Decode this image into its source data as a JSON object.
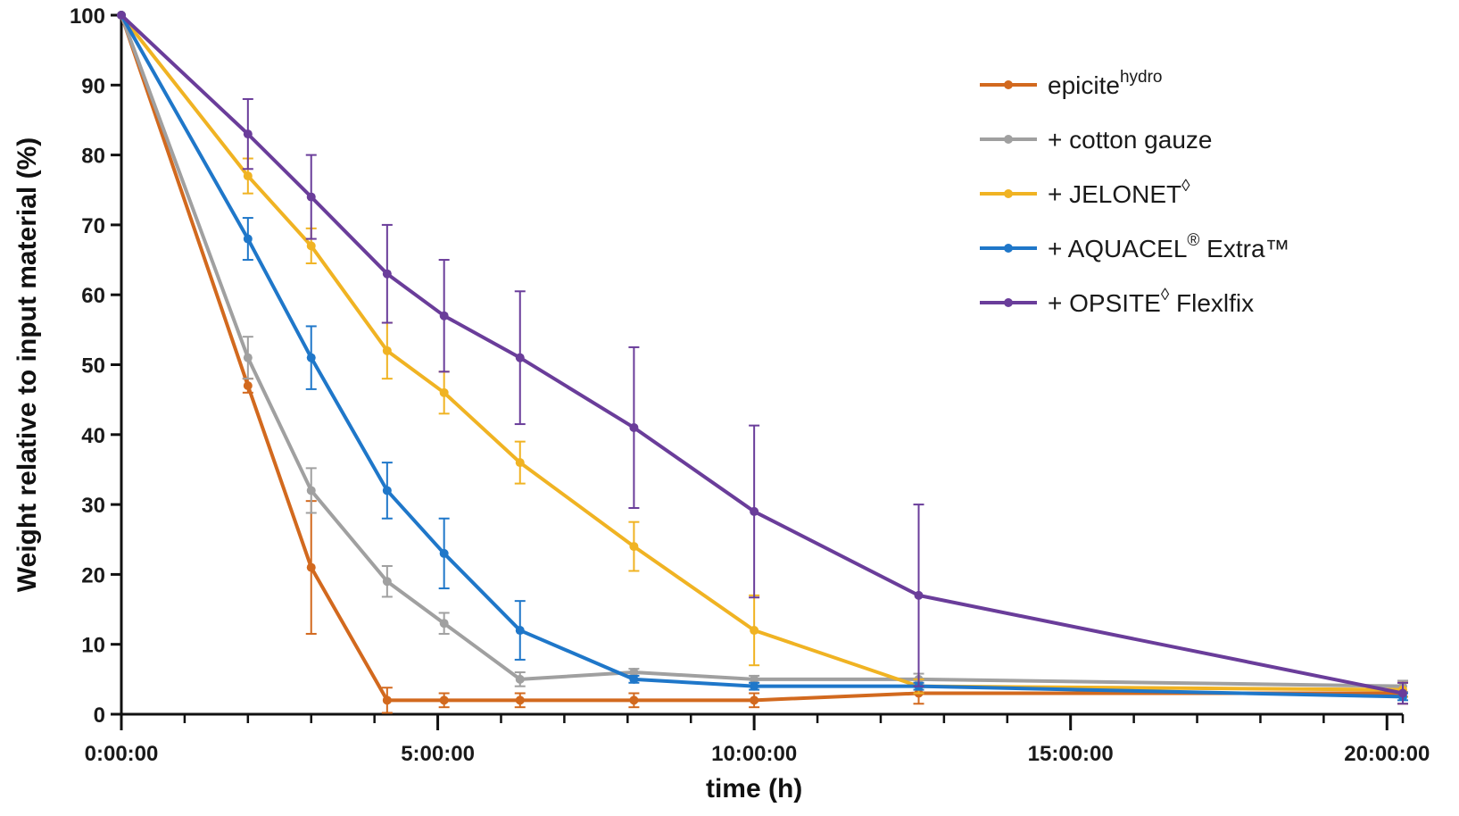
{
  "chart_data": {
    "type": "line",
    "xlabel": "time (h)",
    "ylabel": "Weight relative to input material (%)",
    "xlim": [
      0,
      20.25
    ],
    "ylim": [
      0,
      100
    ],
    "x_ticks": [
      {
        "value": 0,
        "label": "0:00:00"
      },
      {
        "value": 5,
        "label": "5:00:00"
      },
      {
        "value": 10,
        "label": "10:00:00"
      },
      {
        "value": 15,
        "label": "15:00:00"
      },
      {
        "value": 20,
        "label": "20:00:00"
      }
    ],
    "x_minor_step": 1,
    "y_ticks": [
      0,
      10,
      20,
      30,
      40,
      50,
      60,
      70,
      80,
      90,
      100
    ],
    "legend_position": "top-right",
    "series": [
      {
        "name": "epicite",
        "name_sup": "hydro",
        "name_suffix": "",
        "color": "#d2691e",
        "x": [
          0,
          2,
          3,
          4.2,
          5.1,
          6.3,
          8.1,
          10,
          12.6,
          20.25
        ],
        "y": [
          100,
          47,
          21,
          2,
          2,
          2,
          2,
          2,
          3,
          3
        ],
        "err": [
          0,
          1,
          9.5,
          1.8,
          1,
          1,
          1,
          1,
          1.5,
          1.5
        ]
      },
      {
        "name": "+ cotton gauze",
        "name_sup": "",
        "name_suffix": "",
        "color": "#a0a0a0",
        "x": [
          0,
          2,
          3,
          4.2,
          5.1,
          6.3,
          8.1,
          10,
          12.6,
          20.25
        ],
        "y": [
          100,
          51,
          32,
          19,
          13,
          5,
          6,
          5,
          5,
          4
        ],
        "err": [
          0,
          3,
          3.2,
          2.2,
          1.5,
          1,
          0.5,
          0.5,
          0.8,
          0.8
        ]
      },
      {
        "name": "+ JELONET",
        "name_sup": "◊",
        "name_suffix": "",
        "color": "#f0b323",
        "x": [
          0,
          2,
          3,
          4.2,
          5.1,
          6.3,
          8.1,
          10,
          12.6,
          20.25
        ],
        "y": [
          100,
          77,
          67,
          52,
          46,
          36,
          24,
          12,
          4,
          3.5
        ],
        "err": [
          0,
          2.5,
          2.5,
          4,
          3,
          3,
          3.5,
          5,
          1,
          1
        ]
      },
      {
        "name": "+ AQUACEL",
        "name_sup": "®",
        "name_suffix": " Extra™",
        "color": "#1f77c9",
        "x": [
          0,
          2,
          3,
          4.2,
          5.1,
          6.3,
          8.1,
          10,
          12.6,
          20.25
        ],
        "y": [
          100,
          68,
          51,
          32,
          23,
          12,
          5,
          4,
          4,
          2.5
        ],
        "err": [
          0,
          3,
          4.5,
          4,
          5,
          4.2,
          0.5,
          0.5,
          0.5,
          0.5
        ]
      },
      {
        "name": "+ OPSITE",
        "name_sup": "◊",
        "name_suffix": " Flexlfix",
        "color": "#6a3d9a",
        "x": [
          0,
          2,
          3,
          4.2,
          5.1,
          6.3,
          8.1,
          10,
          12.6,
          20.25
        ],
        "y": [
          100,
          83,
          74,
          63,
          57,
          51,
          41,
          29,
          17,
          3
        ],
        "err": [
          0,
          5,
          6,
          7,
          8,
          9.5,
          11.5,
          12.3,
          13,
          1.5
        ]
      }
    ]
  }
}
